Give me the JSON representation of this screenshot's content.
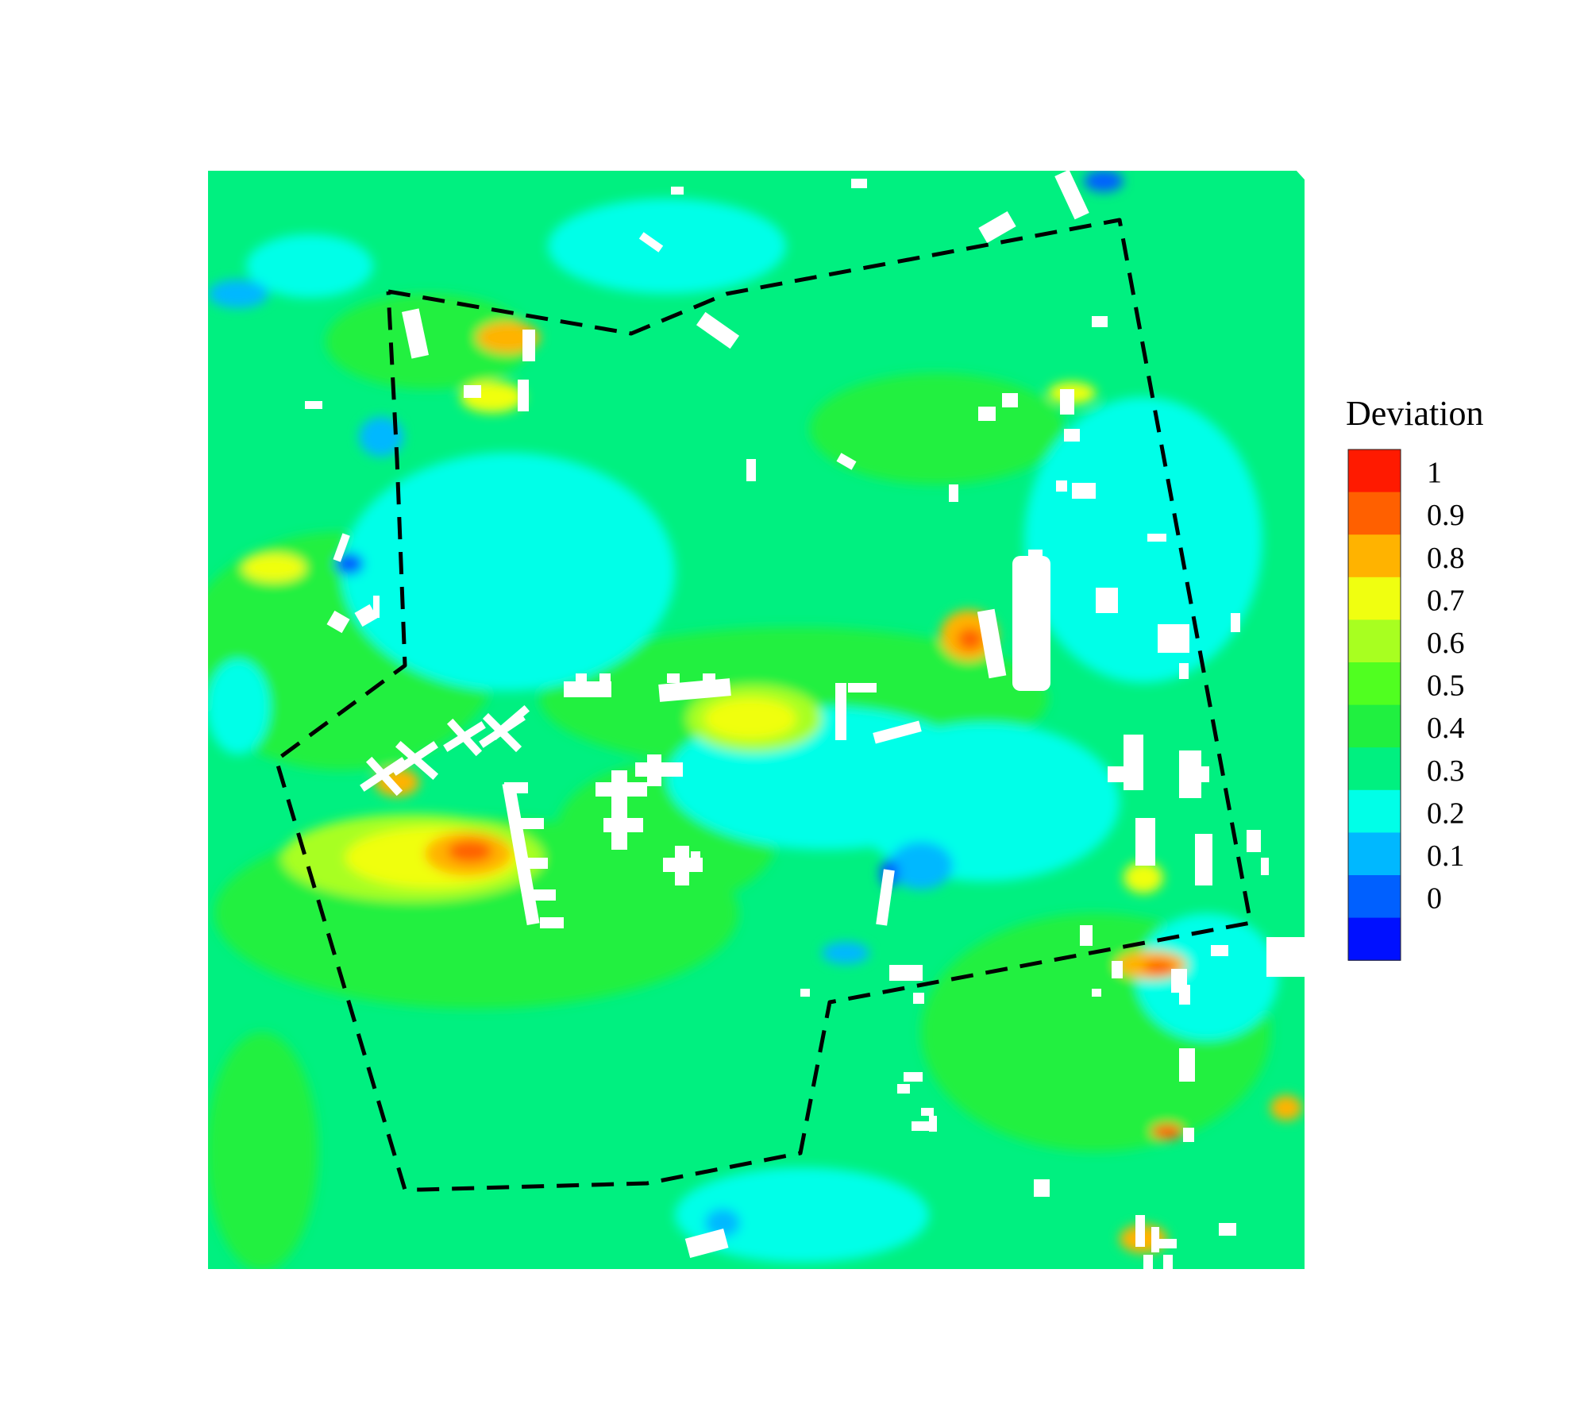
{
  "chart_data": {
    "type": "heatmap",
    "title": "",
    "xlabel": "",
    "ylabel": "",
    "grid": false,
    "legend_placement": "right",
    "colorbar": {
      "title": "Deviation",
      "levels": [
        "1",
        "0.9",
        "0.8",
        "0.7",
        "0.6",
        "0.5",
        "0.4",
        "0.3",
        "0.2",
        "0.1",
        "0"
      ],
      "colors": [
        "#ff1a00",
        "#ff6000",
        "#ffb300",
        "#f0ff10",
        "#a8ff20",
        "#50ff20",
        "#20f040",
        "#00f080",
        "#00ffe8",
        "#00b8ff",
        "#0060ff",
        "#0010ff"
      ]
    },
    "background_value": 0.35,
    "background_color": "#00f080",
    "boundary_style": "dashed",
    "boundary_color": "#000000"
  }
}
